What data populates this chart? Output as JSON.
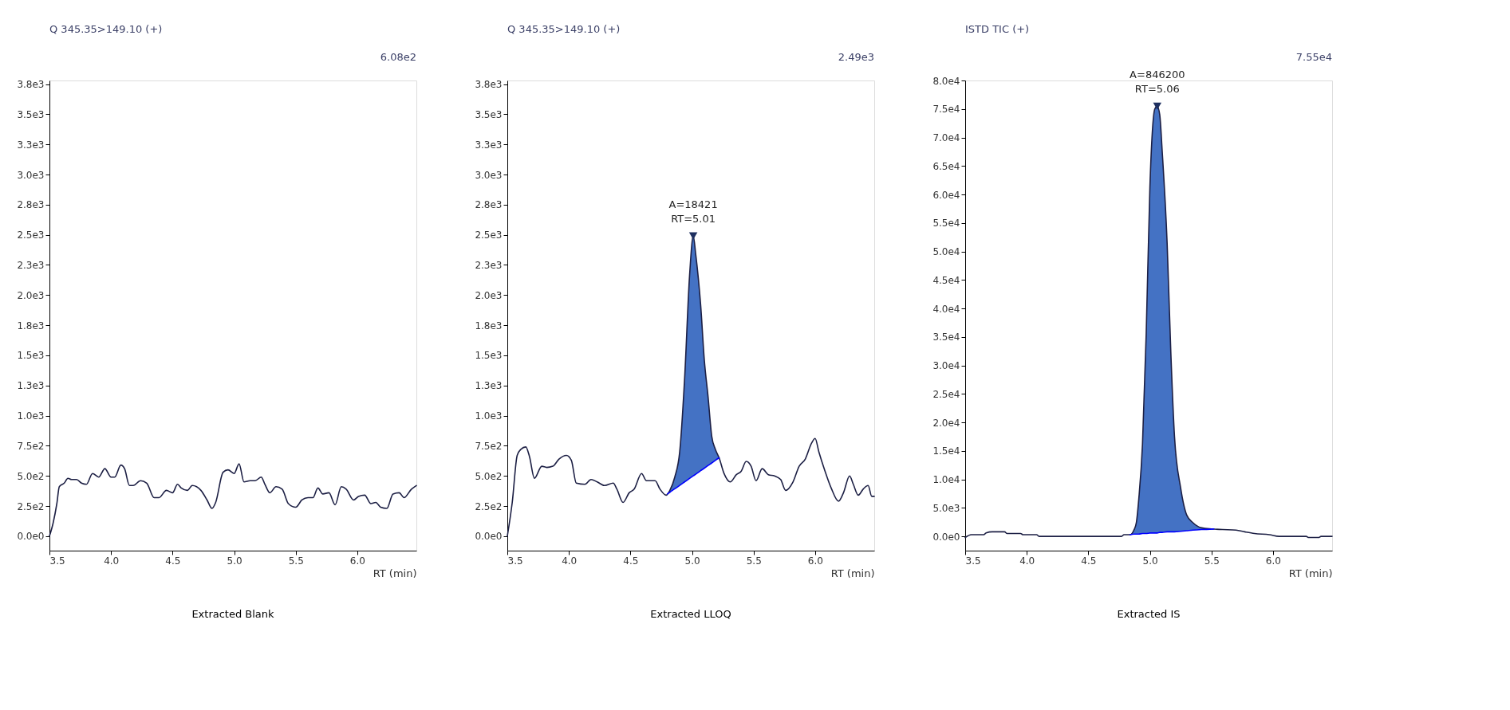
{
  "chart_data": [
    {
      "type": "line",
      "title": "Q 345.35>149.10 (+)",
      "subtitle": "6.08e2",
      "xlabel": "RT (min)",
      "grid": false,
      "legend": false,
      "xlim": [
        3.5,
        6.48
      ],
      "xticks": [
        3.5,
        {
          "value": 4,
          "label": "4.0"
        },
        4.5,
        {
          "value": 5,
          "label": "5.0"
        },
        5.5,
        {
          "value": 6,
          "label": "6.0"
        }
      ],
      "ylim": [
        -120,
        3780
      ],
      "yticks": [
        {
          "value": 0,
          "label": "0.0e0"
        },
        {
          "value": 250,
          "label": "2.5e2"
        },
        {
          "value": 500,
          "label": "5.0e2"
        },
        {
          "value": 750,
          "label": "7.5e2"
        },
        {
          "value": 1000,
          "label": "1.0e3"
        },
        {
          "value": 1250,
          "label": "1.3e3"
        },
        {
          "value": 1500,
          "label": "1.5e3"
        },
        {
          "value": 1750,
          "label": "1.8e3"
        },
        {
          "value": 2000,
          "label": "2.0e3"
        },
        {
          "value": 2250,
          "label": "2.3e3"
        },
        {
          "value": 2500,
          "label": "2.5e3"
        },
        {
          "value": 2750,
          "label": "2.8e3"
        },
        {
          "value": 3000,
          "label": "3.0e3"
        },
        {
          "value": 3250,
          "label": "3.3e3"
        },
        {
          "value": 3500,
          "label": "3.5e3"
        },
        {
          "value": 3750,
          "label": "3.8e3"
        }
      ],
      "annotations": [
        "Extracted Blank"
      ],
      "series": [
        {
          "type": "line",
          "color": "#1c1f44",
          "x": [
            3.5,
            3.53,
            3.56,
            3.58,
            3.62,
            3.65,
            3.68,
            3.72,
            3.76,
            3.8,
            3.85,
            3.9,
            3.95,
            4.0,
            4.03,
            4.08,
            4.11,
            4.15,
            4.18,
            4.24,
            4.29,
            4.35,
            4.39,
            4.45,
            4.5,
            4.54,
            4.57,
            4.62,
            4.66,
            4.73,
            4.78,
            4.82,
            4.85,
            4.91,
            4.95,
            5.0,
            5.04,
            5.08,
            5.13,
            5.17,
            5.22,
            5.25,
            5.29,
            5.34,
            5.39,
            5.44,
            5.5,
            5.55,
            5.6,
            5.64,
            5.68,
            5.72,
            5.77,
            5.82,
            5.87,
            5.91,
            5.97,
            6.01,
            6.06,
            6.11,
            6.15,
            6.19,
            6.24,
            6.29,
            6.34,
            6.38,
            6.44,
            6.48
          ],
          "values": [
            0,
            110,
            270,
            410,
            440,
            480,
            470,
            470,
            440,
            430,
            520,
            490,
            560,
            490,
            490,
            590,
            560,
            420,
            420,
            460,
            440,
            320,
            320,
            380,
            360,
            430,
            400,
            380,
            420,
            380,
            300,
            230,
            280,
            530,
            550,
            520,
            600,
            450,
            460,
            460,
            490,
            430,
            360,
            410,
            390,
            270,
            240,
            300,
            320,
            320,
            400,
            350,
            360,
            260,
            410,
            390,
            300,
            330,
            340,
            270,
            280,
            240,
            230,
            350,
            360,
            320,
            390,
            420
          ]
        }
      ]
    },
    {
      "type": "line",
      "title": "Q 345.35>149.10 (+)",
      "subtitle": "2.49e3",
      "xlabel": "RT (min)",
      "grid": false,
      "legend": false,
      "xlim": [
        3.5,
        6.48
      ],
      "xticks": [
        3.5,
        {
          "value": 4,
          "label": "4.0"
        },
        4.5,
        {
          "value": 5,
          "label": "5.0"
        },
        5.5,
        {
          "value": 6,
          "label": "6.0"
        }
      ],
      "ylim": [
        -120,
        3780
      ],
      "yticks": [
        {
          "value": 0,
          "label": "0.0e0"
        },
        {
          "value": 250,
          "label": "2.5e2"
        },
        {
          "value": 500,
          "label": "5.0e2"
        },
        {
          "value": 750,
          "label": "7.5e2"
        },
        {
          "value": 1000,
          "label": "1.0e3"
        },
        {
          "value": 1250,
          "label": "1.3e3"
        },
        {
          "value": 1500,
          "label": "1.5e3"
        },
        {
          "value": 1750,
          "label": "1.8e3"
        },
        {
          "value": 2000,
          "label": "2.0e3"
        },
        {
          "value": 2250,
          "label": "2.3e3"
        },
        {
          "value": 2500,
          "label": "2.5e3"
        },
        {
          "value": 2750,
          "label": "2.8e3"
        },
        {
          "value": 3000,
          "label": "3.0e3"
        },
        {
          "value": 3250,
          "label": "3.3e3"
        },
        {
          "value": 3500,
          "label": "3.5e3"
        },
        {
          "value": 3750,
          "label": "3.8e3"
        }
      ],
      "annotations": [
        "Extracted LLOQ",
        {
          "text": "A=18421\nRT=5.01",
          "x": 5.01,
          "y": 2490
        }
      ],
      "series": [
        {
          "type": "area",
          "color": "#4472c4",
          "x": [
            4.8,
            4.82,
            4.86,
            4.9,
            4.94,
            4.98,
            5.01,
            5.03,
            5.07,
            5.1,
            5.13,
            5.16,
            5.19,
            5.22
          ],
          "values": [
            350,
            380,
            490,
            700,
            1310,
            2160,
            2490,
            2340,
            1920,
            1460,
            1160,
            830,
            720,
            650
          ]
        },
        {
          "type": "line",
          "color": "#1c1f44",
          "x": [
            3.5,
            3.54,
            3.58,
            3.61,
            3.65,
            3.68,
            3.72,
            3.78,
            3.82,
            3.87,
            3.92,
            3.98,
            4.02,
            4.06,
            4.13,
            4.18,
            4.23,
            4.29,
            4.36,
            4.39,
            4.44,
            4.49,
            4.53,
            4.59,
            4.63,
            4.7,
            4.74,
            4.79,
            4.82,
            4.86,
            4.9,
            4.94,
            4.98,
            5.01,
            5.03,
            5.07,
            5.1,
            5.13,
            5.16,
            5.19,
            5.22,
            5.26,
            5.31,
            5.36,
            5.4,
            5.44,
            5.48,
            5.52,
            5.57,
            5.62,
            5.67,
            5.72,
            5.76,
            5.82,
            5.87,
            5.92,
            5.97,
            6.0,
            6.03,
            6.08,
            6.13,
            6.19,
            6.23,
            6.28,
            6.31,
            6.35,
            6.39,
            6.43,
            6.46,
            6.48
          ],
          "values": [
            0,
            280,
            670,
            720,
            740,
            660,
            480,
            580,
            570,
            580,
            640,
            670,
            630,
            440,
            430,
            470,
            450,
            420,
            440,
            390,
            280,
            360,
            390,
            520,
            460,
            460,
            390,
            340,
            380,
            490,
            700,
            1310,
            2160,
            2490,
            2340,
            1920,
            1460,
            1160,
            830,
            720,
            650,
            520,
            450,
            510,
            540,
            620,
            580,
            460,
            560,
            510,
            500,
            470,
            380,
            450,
            580,
            640,
            770,
            810,
            700,
            540,
            400,
            290,
            360,
            500,
            430,
            340,
            390,
            420,
            330,
            330
          ]
        },
        {
          "type": "line",
          "color": "#0000ff",
          "x": [
            4.8,
            4.82,
            4.86,
            4.9,
            4.94,
            4.98,
            5.01,
            5.03,
            5.07,
            5.1,
            5.13,
            5.16,
            5.19,
            5.22
          ],
          "values": [
            350,
            364,
            393,
            421,
            450,
            479,
            500,
            514,
            543,
            564,
            586,
            607,
            629,
            650
          ]
        },
        {
          "type": "scatter",
          "marker": "triangle",
          "color": "#1f3060",
          "x": [
            5.01
          ],
          "values": [
            2490
          ]
        }
      ]
    },
    {
      "type": "line",
      "title": "ISTD TIC (+)",
      "subtitle": "7.55e4",
      "xlabel": "RT (min)",
      "grid": false,
      "legend": false,
      "xlim": [
        3.5,
        6.48
      ],
      "xticks": [
        3.5,
        {
          "value": 4,
          "label": "4.0"
        },
        4.5,
        {
          "value": 5,
          "label": "5.0"
        },
        5.5,
        {
          "value": 6,
          "label": "6.0"
        }
      ],
      "ylim": [
        -2500,
        80000
      ],
      "yticks": [
        {
          "value": 0,
          "label": "0.0e0"
        },
        {
          "value": 5000,
          "label": "5.0e3"
        },
        {
          "value": 10000,
          "label": "1.0e4"
        },
        {
          "value": 15000,
          "label": "1.5e4"
        },
        {
          "value": 20000,
          "label": "2.0e4"
        },
        {
          "value": 25000,
          "label": "2.5e4"
        },
        {
          "value": 30000,
          "label": "3.0e4"
        },
        {
          "value": 35000,
          "label": "3.5e4"
        },
        {
          "value": 40000,
          "label": "4.0e4"
        },
        {
          "value": 45000,
          "label": "4.5e4"
        },
        {
          "value": 50000,
          "label": "5.0e4"
        },
        {
          "value": 55000,
          "label": "5.5e4"
        },
        {
          "value": 60000,
          "label": "6.0e4"
        },
        {
          "value": 65000,
          "label": "6.5e4"
        },
        {
          "value": 70000,
          "label": "7.0e4"
        },
        {
          "value": 75000,
          "label": "7.5e4"
        },
        {
          "value": 80000,
          "label": "8.0e4"
        }
      ],
      "annotations": [
        "Extracted IS",
        {
          "text": "A=846200\nRT=5.06",
          "x": 5.06,
          "y": 75500
        }
      ],
      "series": [
        {
          "type": "area",
          "color": "#4472c4",
          "x": [
            4.84,
            4.87,
            4.89,
            4.91,
            4.94,
            4.97,
            5.0,
            5.04,
            5.06,
            5.08,
            5.1,
            5.14,
            5.17,
            5.2,
            5.25,
            5.3,
            5.35,
            5.42,
            5.52
          ],
          "values": [
            300,
            1100,
            2400,
            6600,
            16200,
            35500,
            61200,
            75000,
            75500,
            74000,
            67600,
            51500,
            32300,
            17500,
            8500,
            3700,
            2400,
            1500,
            1300
          ]
        },
        {
          "type": "line",
          "color": "#1c1f44",
          "x": [
            3.5,
            3.55,
            3.65,
            3.67,
            3.72,
            3.82,
            3.84,
            3.95,
            3.97,
            4.08,
            4.1,
            4.77,
            4.79,
            4.84,
            4.87,
            4.89,
            4.91,
            4.94,
            4.97,
            5.0,
            5.04,
            5.06,
            5.08,
            5.1,
            5.14,
            5.17,
            5.2,
            5.25,
            5.3,
            5.35,
            5.42,
            5.5,
            5.59,
            5.7,
            5.77,
            5.85,
            5.97,
            6.05,
            6.27,
            6.29,
            6.37,
            6.39,
            6.48
          ],
          "values": [
            -200,
            300,
            300,
            600,
            800,
            800,
            500,
            500,
            300,
            300,
            0,
            0,
            300,
            300,
            1100,
            2400,
            6600,
            16200,
            35500,
            61200,
            75000,
            75500,
            74000,
            67600,
            51500,
            32300,
            17500,
            8500,
            3700,
            2400,
            1500,
            1300,
            1200,
            1100,
            800,
            500,
            300,
            0,
            0,
            -200,
            -200,
            0,
            0
          ]
        },
        {
          "type": "line",
          "color": "#0000ff",
          "x": [
            4.84,
            4.87,
            4.89,
            4.91,
            4.94,
            4.97,
            5.0,
            5.04,
            5.06,
            5.08,
            5.1,
            5.14,
            5.17,
            5.2,
            5.25,
            5.3,
            5.35,
            5.42,
            5.52
          ],
          "values": [
            300,
            400,
            400,
            400,
            500,
            500,
            600,
            600,
            600,
            700,
            700,
            800,
            800,
            800,
            900,
            1000,
            1100,
            1200,
            1300
          ]
        },
        {
          "type": "scatter",
          "marker": "triangle",
          "color": "#1f3060",
          "x": [
            5.06
          ],
          "values": [
            75500
          ]
        }
      ]
    }
  ]
}
